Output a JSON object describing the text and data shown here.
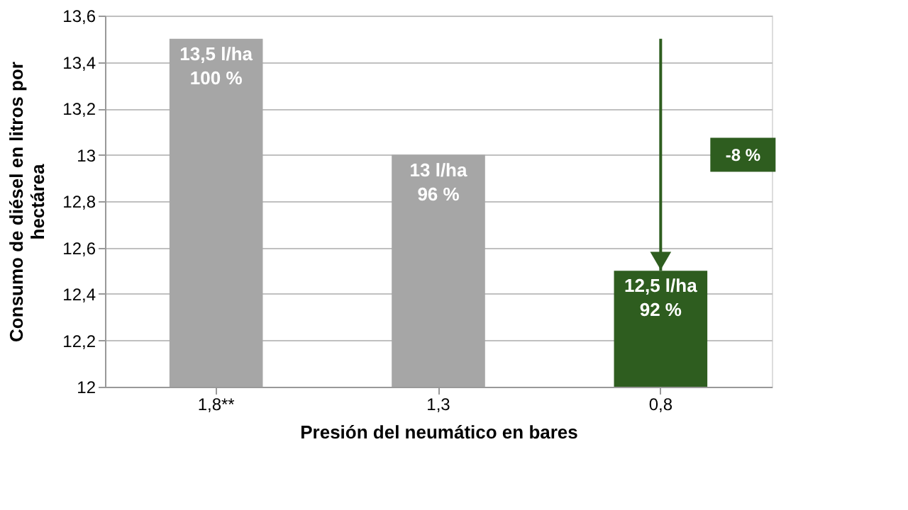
{
  "chart_data": {
    "type": "bar",
    "xlabel": "Presión del neumático  en bares",
    "ylabel": "Consumo de diésel en litros por hectárea",
    "categories": [
      "1,8**",
      "1,3",
      "0,8"
    ],
    "values": [
      13.5,
      13,
      12.5
    ],
    "colors": [
      "#a6a6a6",
      "#a6a6a6",
      "#2e5d1f"
    ],
    "value_labels": [
      "13,5 l/ha\n100 %",
      "13 l/ha\n96 %",
      "12,5 l/ha\n92 %"
    ],
    "ylim": [
      12,
      13.6
    ],
    "yticks": [
      12,
      {
        "value": 12.2,
        "label": "12,2"
      },
      {
        "value": 12.4,
        "label": "12,4"
      },
      {
        "value": 12.6,
        "label": "12,6"
      },
      {
        "value": 12.8,
        "label": "12,8"
      },
      13,
      {
        "value": 13.2,
        "label": "13,2"
      },
      {
        "value": 13.4,
        "label": "13,4"
      },
      {
        "value": 13.6,
        "label": "13,6"
      }
    ],
    "annotations": [
      "-8 %"
    ],
    "grid": "y"
  }
}
